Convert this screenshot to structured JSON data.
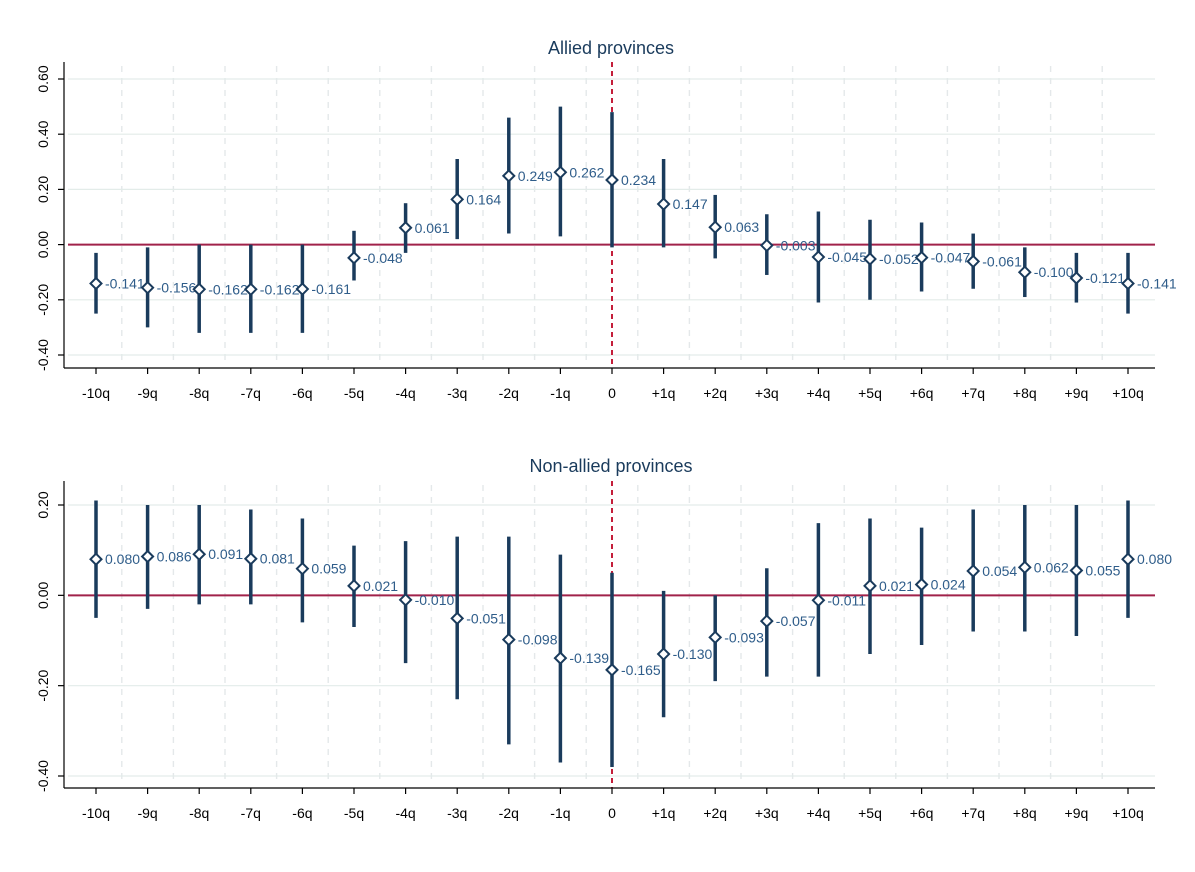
{
  "colors": {
    "ci": "#1a3b5c",
    "marker_stroke": "#1a3b5c",
    "marker_fill": "#ffffff",
    "zero_line": "#a0224a",
    "event_line": "#c41e3a",
    "grid_h": "#e3ece9",
    "grid_v": "#e4e8ea",
    "label": "#2f5d8a"
  },
  "chart_data": [
    {
      "type": "scatter",
      "title": "Allied provinces",
      "categories": [
        "-10q",
        "-9q",
        "-8q",
        "-7q",
        "-6q",
        "-5q",
        "-4q",
        "-3q",
        "-2q",
        "-1q",
        "0",
        "+1q",
        "+2q",
        "+3q",
        "+4q",
        "+5q",
        "+6q",
        "+7q",
        "+8q",
        "+9q",
        "+10q"
      ],
      "values": [
        -0.141,
        -0.156,
        -0.162,
        -0.162,
        -0.161,
        -0.048,
        0.061,
        0.164,
        0.249,
        0.262,
        0.234,
        0.147,
        0.063,
        -0.003,
        -0.045,
        -0.052,
        -0.047,
        -0.061,
        -0.1,
        -0.121,
        -0.141
      ],
      "value_labels": [
        "-0.141",
        "-0.156",
        "-0.162",
        "-0.162",
        "-0.161",
        "-0.048",
        "0.061",
        "0.164",
        "0.249",
        "0.262",
        "0.234",
        "0.147",
        "0.063",
        "-0.003",
        "-0.045",
        "-0.052",
        "-0.047",
        "-0.061",
        "-0.100",
        "-0.121",
        "-0.141"
      ],
      "ci_low": [
        -0.25,
        -0.3,
        -0.32,
        -0.32,
        -0.32,
        -0.13,
        -0.03,
        0.02,
        0.04,
        0.03,
        -0.01,
        -0.01,
        -0.05,
        -0.11,
        -0.21,
        -0.2,
        -0.17,
        -0.16,
        -0.19,
        -0.21,
        -0.25
      ],
      "ci_high": [
        -0.03,
        -0.01,
        0.0,
        0.0,
        0.0,
        0.05,
        0.15,
        0.31,
        0.46,
        0.5,
        0.48,
        0.31,
        0.18,
        0.11,
        0.12,
        0.09,
        0.08,
        0.04,
        -0.01,
        -0.03,
        -0.03
      ],
      "yticks": [
        "-0.40",
        "-0.20",
        "0.00",
        "0.20",
        "0.40",
        "0.60"
      ],
      "ylim": [
        -0.44,
        0.64
      ],
      "event_at": "0",
      "reference_y": 0
    },
    {
      "type": "scatter",
      "title": "Non-allied provinces",
      "categories": [
        "-10q",
        "-9q",
        "-8q",
        "-7q",
        "-6q",
        "-5q",
        "-4q",
        "-3q",
        "-2q",
        "-1q",
        "0",
        "+1q",
        "+2q",
        "+3q",
        "+4q",
        "+5q",
        "+6q",
        "+7q",
        "+8q",
        "+9q",
        "+10q"
      ],
      "values": [
        0.08,
        0.086,
        0.091,
        0.081,
        0.059,
        0.021,
        -0.01,
        -0.051,
        -0.098,
        -0.139,
        -0.165,
        -0.13,
        -0.093,
        -0.057,
        -0.011,
        0.021,
        0.024,
        0.054,
        0.062,
        0.055,
        0.08
      ],
      "value_labels": [
        "0.080",
        "0.086",
        "0.091",
        "0.081",
        "0.059",
        "0.021",
        "-0.010",
        "-0.051",
        "-0.098",
        "-0.139",
        "-0.165",
        "-0.130",
        "-0.093",
        "-0.057",
        "-0.011",
        "0.021",
        "0.024",
        "0.054",
        "0.062",
        "0.055",
        "0.080"
      ],
      "ci_low": [
        -0.05,
        -0.03,
        -0.02,
        -0.02,
        -0.06,
        -0.07,
        -0.15,
        -0.23,
        -0.33,
        -0.37,
        -0.38,
        -0.27,
        -0.19,
        -0.18,
        -0.18,
        -0.13,
        -0.11,
        -0.08,
        -0.08,
        -0.09,
        -0.05
      ],
      "ci_high": [
        0.21,
        0.2,
        0.2,
        0.19,
        0.17,
        0.11,
        0.12,
        0.13,
        0.13,
        0.09,
        0.05,
        0.01,
        0.0,
        0.06,
        0.16,
        0.17,
        0.15,
        0.19,
        0.2,
        0.2,
        0.21
      ],
      "yticks": [
        "-0.40",
        "-0.20",
        "0.00",
        "0.20"
      ],
      "ylim": [
        -0.42,
        0.25
      ],
      "event_at": "0",
      "reference_y": 0
    }
  ]
}
